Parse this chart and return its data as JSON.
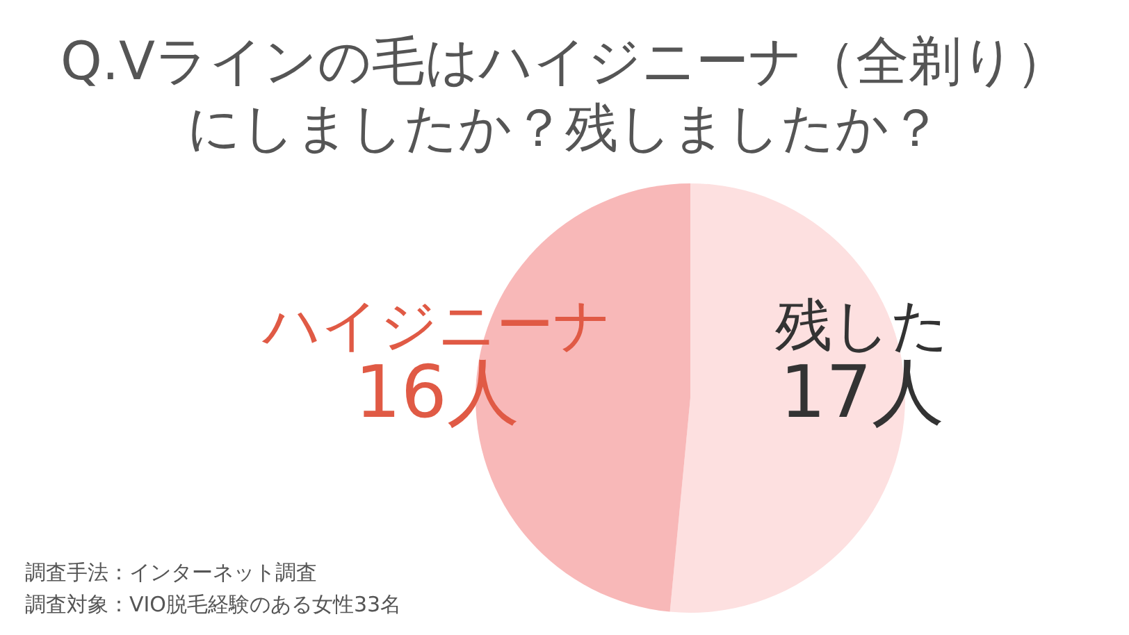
{
  "chart_data": {
    "type": "pie",
    "title": "Q.Vラインの毛はハイジニーナ（全剃り）にしましたか？残しましたか？",
    "categories": [
      "残した",
      "ハイジニーナ"
    ],
    "values": [
      17,
      16
    ],
    "colors": [
      "#fde0e0",
      "#f8b8b8"
    ],
    "value_labels": [
      "17人",
      "16人"
    ],
    "annotations": [
      "調査手法：インターネット調査",
      "調査対象：VIO脱毛経験のある女性33名"
    ]
  }
}
